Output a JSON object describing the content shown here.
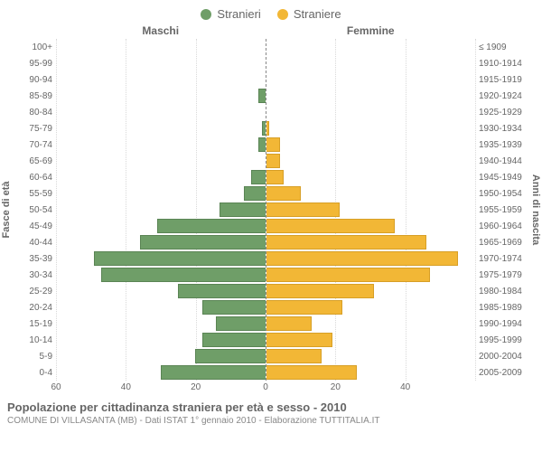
{
  "chart": {
    "type": "population-pyramid",
    "legend": {
      "male": {
        "label": "Stranieri",
        "color": "#6f9e68"
      },
      "female": {
        "label": "Straniere",
        "color": "#f2b736"
      }
    },
    "headings": {
      "male": "Maschi",
      "female": "Femmine"
    },
    "ylabel_left": "Fasce di età",
    "ylabel_right": "Anni di nascita",
    "xmax": 60,
    "xtick_step": 20,
    "xticks_male": [
      60,
      40,
      20,
      0
    ],
    "xticks_female": [
      0,
      20,
      40
    ],
    "background_color": "#ffffff",
    "grid_color": "#d9d9d9",
    "axis_color": "#888888",
    "bar_border_male": "#5a8454",
    "bar_border_female": "#d79f26",
    "label_fontsize": 10,
    "rows": [
      {
        "age": "100+",
        "birth": "≤ 1909",
        "male": 0,
        "female": 0
      },
      {
        "age": "95-99",
        "birth": "1910-1914",
        "male": 0,
        "female": 0
      },
      {
        "age": "90-94",
        "birth": "1915-1919",
        "male": 0,
        "female": 0
      },
      {
        "age": "85-89",
        "birth": "1920-1924",
        "male": 2,
        "female": 0
      },
      {
        "age": "80-84",
        "birth": "1925-1929",
        "male": 0,
        "female": 0
      },
      {
        "age": "75-79",
        "birth": "1930-1934",
        "male": 1,
        "female": 1
      },
      {
        "age": "70-74",
        "birth": "1935-1939",
        "male": 2,
        "female": 4
      },
      {
        "age": "65-69",
        "birth": "1940-1944",
        "male": 0,
        "female": 4
      },
      {
        "age": "60-64",
        "birth": "1945-1949",
        "male": 4,
        "female": 5
      },
      {
        "age": "55-59",
        "birth": "1950-1954",
        "male": 6,
        "female": 10
      },
      {
        "age": "50-54",
        "birth": "1955-1959",
        "male": 13,
        "female": 21
      },
      {
        "age": "45-49",
        "birth": "1960-1964",
        "male": 31,
        "female": 37
      },
      {
        "age": "40-44",
        "birth": "1965-1969",
        "male": 36,
        "female": 46
      },
      {
        "age": "35-39",
        "birth": "1970-1974",
        "male": 49,
        "female": 55
      },
      {
        "age": "30-34",
        "birth": "1975-1979",
        "male": 47,
        "female": 47
      },
      {
        "age": "25-29",
        "birth": "1980-1984",
        "male": 25,
        "female": 31
      },
      {
        "age": "20-24",
        "birth": "1985-1989",
        "male": 18,
        "female": 22
      },
      {
        "age": "15-19",
        "birth": "1990-1994",
        "male": 14,
        "female": 13
      },
      {
        "age": "10-14",
        "birth": "1995-1999",
        "male": 18,
        "female": 19
      },
      {
        "age": "5-9",
        "birth": "2000-2004",
        "male": 20,
        "female": 16
      },
      {
        "age": "0-4",
        "birth": "2005-2009",
        "male": 30,
        "female": 26
      }
    ]
  },
  "footer": {
    "title": "Popolazione per cittadinanza straniera per età e sesso - 2010",
    "subtitle": "COMUNE DI VILLASANTA (MB) - Dati ISTAT 1° gennaio 2010 - Elaborazione TUTTITALIA.IT"
  }
}
